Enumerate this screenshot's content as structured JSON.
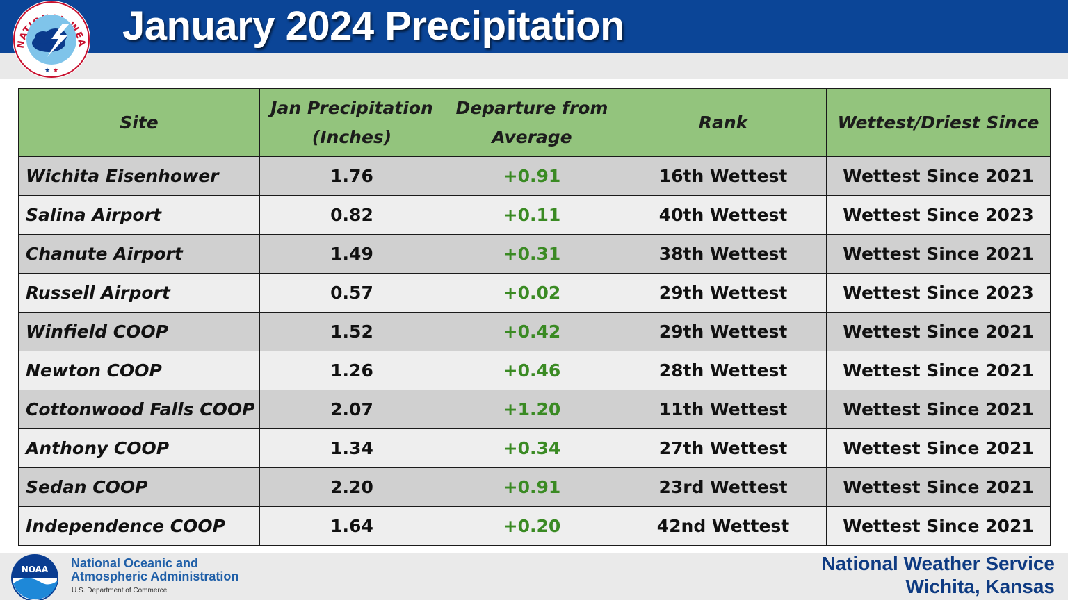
{
  "header": {
    "title": "January 2024 Precipitation",
    "logo_text": "NATIONAL WEATHER SERVICE"
  },
  "table": {
    "headers": [
      "Site",
      "Jan Precipitation (Inches)",
      "Departure from Average",
      "Rank",
      "Wettest/Driest Since"
    ],
    "rows": [
      {
        "site": "Wichita Eisenhower",
        "precip": "1.76",
        "departure": "+0.91",
        "rank": "16th Wettest",
        "since": "Wettest Since 2021"
      },
      {
        "site": "Salina Airport",
        "precip": "0.82",
        "departure": "+0.11",
        "rank": "40th Wettest",
        "since": "Wettest Since 2023"
      },
      {
        "site": "Chanute Airport",
        "precip": "1.49",
        "departure": "+0.31",
        "rank": "38th Wettest",
        "since": "Wettest Since 2021"
      },
      {
        "site": "Russell Airport",
        "precip": "0.57",
        "departure": "+0.02",
        "rank": "29th Wettest",
        "since": "Wettest Since 2023"
      },
      {
        "site": "Winfield COOP",
        "precip": "1.52",
        "departure": "+0.42",
        "rank": "29th Wettest",
        "since": "Wettest Since 2021"
      },
      {
        "site": "Newton COOP",
        "precip": "1.26",
        "departure": "+0.46",
        "rank": "28th Wettest",
        "since": "Wettest Since 2021"
      },
      {
        "site": "Cottonwood Falls COOP",
        "precip": "2.07",
        "departure": "+1.20",
        "rank": "11th Wettest",
        "since": "Wettest Since 2021"
      },
      {
        "site": "Anthony COOP",
        "precip": "1.34",
        "departure": "+0.34",
        "rank": "27th Wettest",
        "since": "Wettest Since 2021"
      },
      {
        "site": "Sedan COOP",
        "precip": "2.20",
        "departure": "+0.91",
        "rank": "23rd Wettest",
        "since": "Wettest Since 2021"
      },
      {
        "site": "Independence COOP",
        "precip": "1.64",
        "departure": "+0.20",
        "rank": "42nd Wettest",
        "since": "Wettest Since 2021"
      }
    ]
  },
  "footer": {
    "noaa_line1": "National Oceanic and",
    "noaa_line2": "Atmospheric Administration",
    "noaa_line3": "U.S. Department of Commerce",
    "noaa_logo_text": "NOAA",
    "office_line1": "National Weather Service",
    "office_line2": "Wichita, Kansas"
  },
  "colors": {
    "header_blue": "#0b4597",
    "table_header_green": "#93c47d",
    "departure_green": "#3a8a23",
    "row_dark": "#d0d0d0",
    "row_light": "#eeeeee"
  }
}
